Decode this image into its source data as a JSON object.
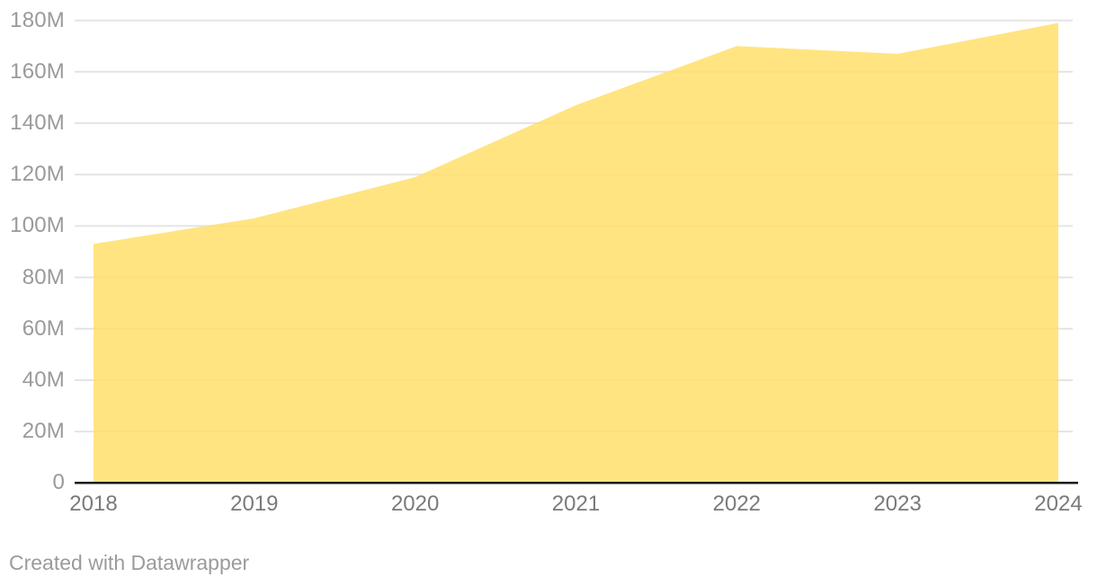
{
  "chart_data": {
    "type": "area",
    "x": [
      "2018",
      "2019",
      "2020",
      "2021",
      "2022",
      "2023",
      "2024"
    ],
    "series": [
      {
        "name": "value",
        "values": [
          93,
          103,
          119,
          147,
          170,
          167,
          179
        ]
      }
    ],
    "unit": "M",
    "title": "",
    "xlabel": "",
    "ylabel": "",
    "ylim": [
      0,
      180
    ],
    "yticks": {
      "values": [
        0,
        20,
        40,
        60,
        80,
        100,
        120,
        140,
        160,
        180
      ],
      "labels": [
        "0",
        "20M",
        "40M",
        "60M",
        "80M",
        "100M",
        "120M",
        "140M",
        "160M",
        "180M"
      ]
    },
    "grid": true,
    "legend": false,
    "colors": {
      "area_fill": "#ffdf6b",
      "area_opacity": 0.85,
      "gridline": "#e4e4e4",
      "baseline": "#161616",
      "ytick_text": "#9a9a9a",
      "xtick_text": "#7a7a7a",
      "credit_text": "#9b9b9b"
    }
  },
  "footer": {
    "credit": "Created with Datawrapper"
  }
}
